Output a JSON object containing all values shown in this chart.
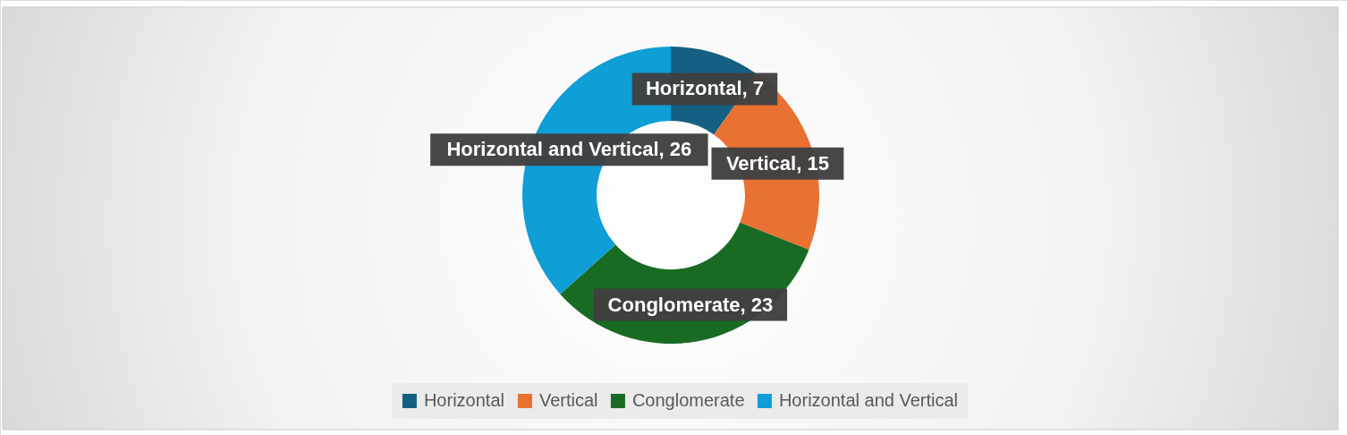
{
  "chart_data": {
    "type": "donut",
    "categories": [
      "Horizontal",
      "Vertical",
      "Conglomerate",
      "Horizontal and Vertical"
    ],
    "values": [
      7,
      15,
      23,
      26
    ],
    "colors": [
      "#156082",
      "#e97132",
      "#196b24",
      "#0f9ed5"
    ],
    "value_labels": [
      "Horizontal, 7",
      "Vertical, 15",
      "Conglomerate, 23",
      "Horizontal and Vertical, 26"
    ],
    "legend": "bottom"
  }
}
